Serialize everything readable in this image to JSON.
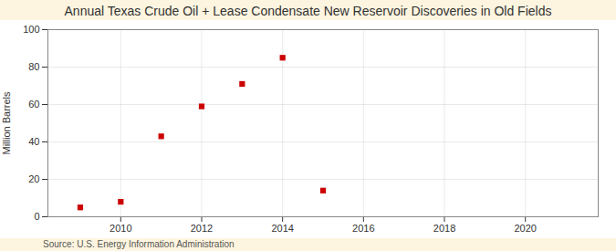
{
  "chart_data": {
    "type": "scatter",
    "title": "Annual Texas Crude Oil + Lease Condensate New Reservoir Discoveries in Old Fields",
    "ylabel": "Million Barrels",
    "source": "Source: U.S. Energy Information Administration",
    "x": [
      2009,
      2010,
      2011,
      2012,
      2013,
      2014,
      2015
    ],
    "values": [
      5,
      8,
      43,
      59,
      71,
      85,
      14
    ],
    "color": "#cc0000",
    "marker": "square",
    "xlim": [
      2008.2,
      2021.8
    ],
    "ylim": [
      0,
      100
    ],
    "xticks": [
      2010,
      2012,
      2014,
      2016,
      2018,
      2020
    ],
    "yticks": [
      0,
      20,
      40,
      60,
      80,
      100
    ],
    "grid": true
  }
}
